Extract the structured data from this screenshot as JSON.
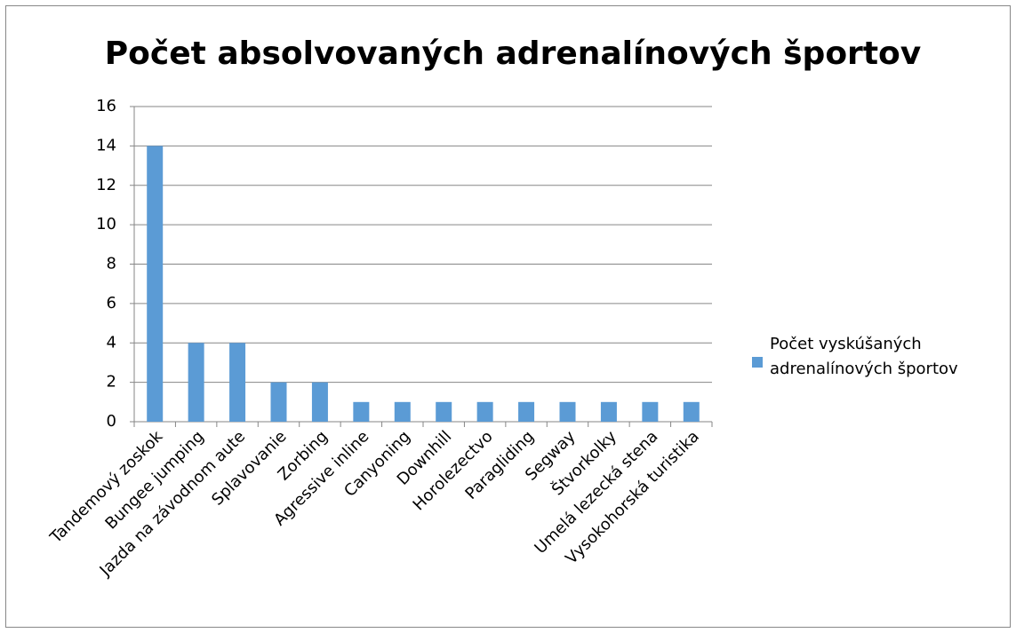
{
  "chart_data": {
    "type": "bar",
    "title": "Počet absolvovaných adrenalínových športov",
    "categories": [
      "Tandemový zoskok",
      "Bungee jumping",
      "Jazda na závodnom aute",
      "Splavovanie",
      "Zorbing",
      "Agressive inline",
      "Canyoning",
      "Downhill",
      "Horolezectvo",
      "Paragliding",
      "Segway",
      "Štvorkolky",
      "Umelá lezecká stena",
      "Vysokohorská turistika"
    ],
    "series": [
      {
        "name": "Počet vyskúšaných adrenalínových športov",
        "color": "#5b9bd5",
        "values": [
          14,
          4,
          4,
          2,
          2,
          1,
          1,
          1,
          1,
          1,
          1,
          1,
          1,
          1
        ]
      }
    ],
    "ylim": [
      0,
      16
    ],
    "yticks": [
      0,
      2,
      4,
      6,
      8,
      10,
      12,
      14,
      16
    ],
    "grid": true,
    "legend": "right"
  }
}
